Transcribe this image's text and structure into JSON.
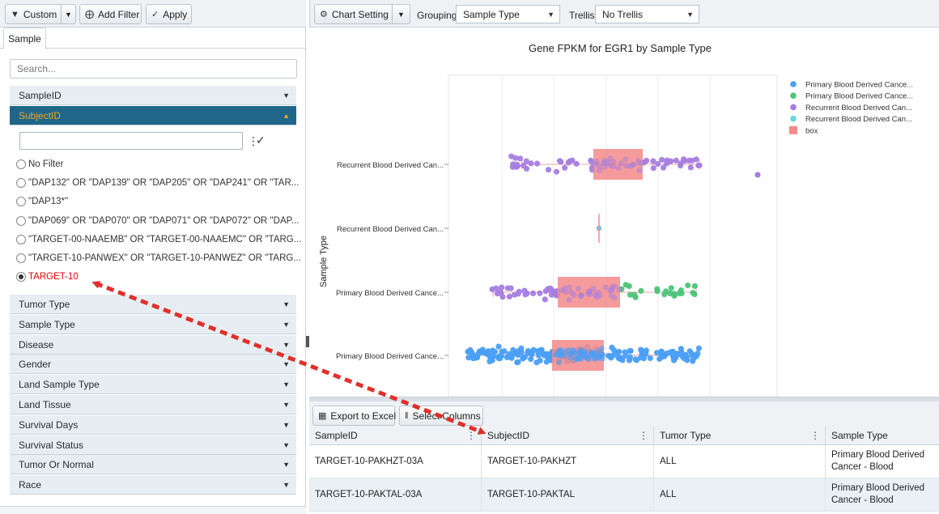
{
  "left_toolbar": {
    "custom_label": "Custom",
    "add_filter_label": "Add Filter",
    "apply_label": "Apply"
  },
  "tab_label": "Sample",
  "search_placeholder": "Search...",
  "accordion": {
    "sampleid": "SampleID",
    "subjectid": "SubjectID",
    "rest": [
      "Tumor Type",
      "Sample Type",
      "Disease",
      "Gender",
      "Land Sample Type",
      "Land Tissue",
      "Survival Days",
      "Survival Status",
      "Tumor Or Normal",
      "Race"
    ]
  },
  "filter_options": [
    "No Filter",
    "\"DAP132\" OR \"DAP139\" OR \"DAP205\" OR \"DAP241\" OR \"TAR...",
    "\"DAP13*\"",
    "\"DAP069\" OR \"DAP070\" OR \"DAP071\" OR \"DAP072\" OR \"DAP...",
    "\"TARGET-00-NAAEMB\" OR \"TARGET-00-NAAEMC\" OR \"TARG...",
    "\"TARGET-10-PANWEX\" OR \"TARGET-10-PANWEZ\" OR \"TARG...",
    "TARGET-10"
  ],
  "selected_option_index": 6,
  "right_toolbar": {
    "chart_setting_label": "Chart Setting",
    "grouping_label": "Grouping",
    "grouping_value": "Sample Type",
    "trellis_label": "Trellis",
    "trellis_value": "No Trellis"
  },
  "chart_data": {
    "type": "scatter",
    "title": "Gene FPKM for EGR1 by Sample Type",
    "ylabel": "Sample Type",
    "xlabel": "",
    "categories": [
      "Primary Blood Derived Cance...",
      "Primary Blood Derived Cance...",
      "Recurrent Blood Derived Can...",
      "Recurrent Blood Derived Can..."
    ],
    "legend": [
      {
        "name": "Primary Blood Derived Cance...",
        "color": "#4a9ff5"
      },
      {
        "name": "Primary Blood Derived Cance...",
        "color": "#4ec47a"
      },
      {
        "name": "Recurrent Blood Derived Can...",
        "color": "#a57ee0"
      },
      {
        "name": "Recurrent Blood Derived Can...",
        "color": "#6dd3df"
      },
      {
        "name": "box",
        "color": "#f58a8a"
      }
    ],
    "legend_position": "top-right",
    "grid": true,
    "box_color": "#f58a8a"
  },
  "grid_toolbar": {
    "export_label": "Export to Excel",
    "select_columns_label": "Select Columns"
  },
  "table": {
    "columns": [
      "SampleID",
      "SubjectID",
      "Tumor Type",
      "Sample Type"
    ],
    "rows": [
      [
        "TARGET-10-PAKHZT-03A",
        "TARGET-10-PAKHZT",
        "ALL",
        "Primary Blood Derived Cancer - Blood"
      ],
      [
        "TARGET-10-PAKTAL-03A",
        "TARGET-10-PAKTAL",
        "ALL",
        "Primary Blood Derived Cancer - Blood"
      ]
    ]
  },
  "colors": {
    "accent_header": "#1f6689",
    "accent_text": "#f5a623",
    "selected_text": "#e00000",
    "arrow": "#e0302a"
  }
}
